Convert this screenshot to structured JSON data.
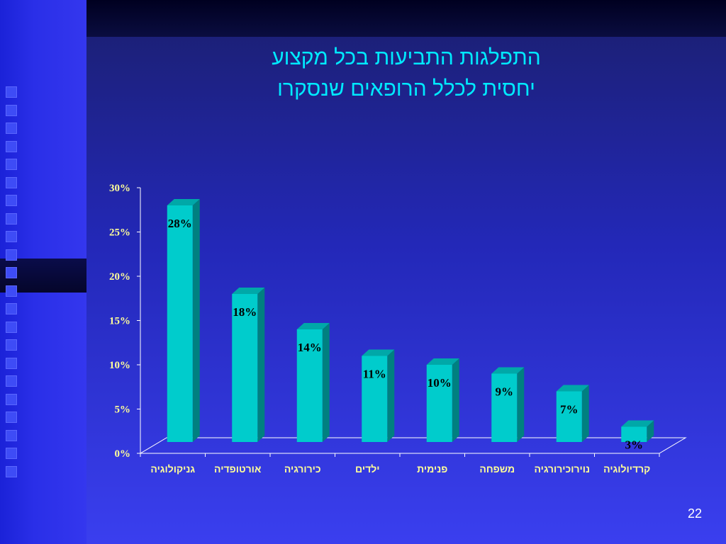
{
  "slide": {
    "title_line1": "התפלגות התביעות בכל מקצוע",
    "title_line2": "יחסית לכלל הרופאים שנסקרו",
    "page_number": "22"
  },
  "chart_data": {
    "type": "bar",
    "categories": [
      "גניקולוגיה",
      "אורטופדיה",
      "כירורגיה",
      "ילדים",
      "פנימית",
      "משפחה",
      "נוירוכירורגיה",
      "קרדיולוגיה"
    ],
    "values": [
      28,
      18,
      14,
      11,
      10,
      9,
      7,
      3
    ],
    "value_labels": [
      "28%",
      "18%",
      "14%",
      "11%",
      "10%",
      "9%",
      "7%",
      "3%"
    ],
    "yticks": [
      "0%",
      "5%",
      "10%",
      "15%",
      "20%",
      "25%",
      "30%"
    ],
    "ylim": [
      0,
      30
    ],
    "bar_color": "#00cccc",
    "bar_side_color": "#008080",
    "bar_top_color": "#00a8a8",
    "axis_label_color": "#ffff99",
    "xlabel": "",
    "ylabel": ""
  }
}
